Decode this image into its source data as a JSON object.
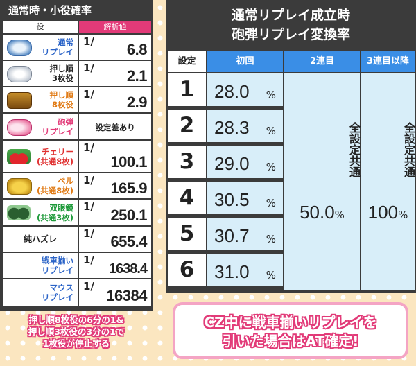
{
  "left": {
    "title": "通常時・小役確率",
    "col_role": "役",
    "col_value": "解析値",
    "rows": [
      {
        "line1": "通常",
        "line2": "リプレイ",
        "color": "#2a63c7",
        "symbol": "replay-icon",
        "num": "1",
        "den": "6.8"
      },
      {
        "line1": "押し順",
        "line2": "3枚役",
        "color": "#222222",
        "symbol": "bell-pack-icon",
        "num": "1",
        "den": "2.1"
      },
      {
        "line1": "押し順",
        "line2": "8枚役",
        "color": "#e07a14",
        "symbol": "tank-icon",
        "num": "1",
        "den": "2.9"
      },
      {
        "line1": "砲弾",
        "line2": "リプレイ",
        "color": "#e23a78",
        "symbol": "shell-icon",
        "value_text": "設定差あり"
      },
      {
        "line1": "チェリー",
        "line2": "(共通8枚)",
        "color": "#e03030",
        "symbol": "cherry-icon",
        "num": "1",
        "den": "100.1"
      },
      {
        "line1": "ベル",
        "line2": "(共通8枚)",
        "color": "#e07a14",
        "symbol": "bell-icon",
        "num": "1",
        "den": "165.9"
      },
      {
        "line1": "双眼鏡",
        "line2": "(共通3枚)",
        "color": "#1e9a3a",
        "symbol": "binoculars-icon",
        "num": "1",
        "den": "250.1"
      },
      {
        "label": "純ハズレ",
        "color": "#222222",
        "num": "1",
        "den": "655.4"
      },
      {
        "line1": "戦車揃い",
        "line2": "リプレイ",
        "color": "#2a63c7",
        "num": "1",
        "den": "1638.4"
      },
      {
        "line1": "マウス",
        "line2": "リプレイ",
        "color": "#2a63c7",
        "num": "1",
        "den": "16384"
      }
    ],
    "note_line1": "押し順8枚役の6分の1&",
    "note_line2": "押し順3枚役の3分の1で",
    "note_line3": "1枚役が停止する"
  },
  "right": {
    "title_line1": "通常リプレイ成立時",
    "title_line2": "砲弾リプレイ変換率",
    "col_setting": "設定",
    "col_first": "初回",
    "col_second": "2連目",
    "col_third": "3連目以降",
    "settings": [
      "1",
      "2",
      "3",
      "4",
      "5",
      "6"
    ],
    "first_values": [
      "28.0",
      "28.3",
      "29.0",
      "30.5",
      "30.7",
      "31.0"
    ],
    "percent": "%",
    "common_label": "全設定共通",
    "second_value": "50.0",
    "third_value": "100",
    "note_line1": "CZ中に戦車揃いリプレイを",
    "note_line2": "引いた場合はAT確定!"
  },
  "colors": {
    "background": "#fbe6c0",
    "panel": "#3b3b3b",
    "pink": "#e23a78",
    "blue_header": "#3a8ee6",
    "light_blue": "#d8eef9"
  }
}
